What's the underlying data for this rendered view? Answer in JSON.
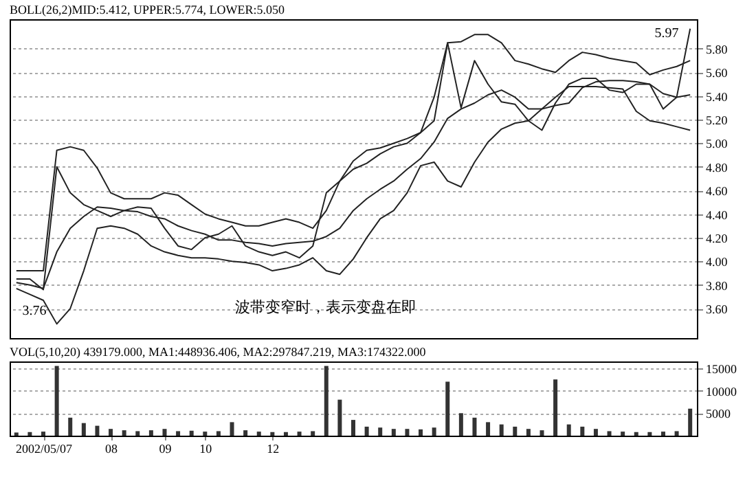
{
  "chart_data": [
    {
      "type": "line",
      "title": "BOLL(26,2)MID:5.412, UPPER:5.774, LOWER:5.050",
      "categories": [
        null,
        null,
        "2002/05/07",
        null,
        null,
        null,
        null,
        "08",
        null,
        null,
        null,
        "09",
        null,
        null,
        "10",
        null,
        null,
        null,
        null,
        "12",
        null,
        null,
        null,
        null,
        null,
        null,
        null,
        null,
        null,
        null,
        null,
        null,
        null,
        null,
        null,
        null,
        null,
        null,
        null,
        null,
        null,
        null,
        null,
        null,
        null,
        null,
        null,
        null,
        null,
        null,
        null
      ],
      "ylim": [
        3.35,
        6.05
      ],
      "yticks": [
        {
          "value": 3.6,
          "label": "3.60"
        },
        {
          "value": 3.8,
          "label": "3.80"
        },
        {
          "value": 4.0,
          "label": "4.00"
        },
        {
          "value": 4.2,
          "label": "4.20"
        },
        {
          "value": 4.4,
          "label": "4.40"
        },
        {
          "value": 4.6,
          "label": "4.60"
        },
        {
          "value": 4.8,
          "label": "4.80"
        },
        {
          "value": 5.0,
          "label": "5.00"
        },
        {
          "value": 5.2,
          "label": "5.20"
        },
        {
          "value": 5.4,
          "label": "5.40"
        },
        {
          "value": 5.6,
          "label": "5.60"
        },
        {
          "value": 5.8,
          "label": "5.80"
        }
      ],
      "grid": "y",
      "tick_labels": "y",
      "line_style": "solid",
      "series": [
        {
          "color": "#222222",
          "values": [
            3.85,
            3.85,
            3.76,
            4.8,
            4.58,
            4.48,
            4.43,
            4.38,
            4.43,
            4.46,
            4.45,
            4.28,
            4.13,
            4.1,
            4.2,
            4.23,
            4.3,
            4.13,
            4.08,
            4.05,
            4.08,
            4.03,
            4.13,
            4.58,
            4.68,
            4.78,
            4.83,
            4.91,
            4.97,
            5.0,
            5.09,
            5.39,
            5.85,
            5.3,
            5.7,
            5.5,
            5.35,
            5.33,
            5.19,
            5.11,
            5.34,
            5.5,
            5.55,
            5.55,
            5.45,
            5.43,
            5.5,
            5.5,
            5.29,
            5.39,
            5.97
          ]
        },
        {
          "color": "#222222",
          "values": [
            3.92,
            3.92,
            3.92,
            4.94,
            4.97,
            4.94,
            4.79,
            4.58,
            4.53,
            4.53,
            4.53,
            4.58,
            4.56,
            4.48,
            4.4,
            4.36,
            4.33,
            4.3,
            4.3,
            4.33,
            4.36,
            4.33,
            4.28,
            4.43,
            4.68,
            4.85,
            4.94,
            4.96,
            5.0,
            5.04,
            5.09,
            5.19,
            5.85,
            5.86,
            5.92,
            5.92,
            5.85,
            5.7,
            5.67,
            5.63,
            5.6,
            5.7,
            5.77,
            5.75,
            5.72,
            5.7,
            5.68,
            5.58,
            5.62,
            5.65,
            5.7
          ]
        },
        {
          "color": "#222222",
          "values": [
            3.82,
            3.8,
            3.77,
            4.08,
            4.28,
            4.38,
            4.46,
            4.45,
            4.43,
            4.42,
            4.38,
            4.36,
            4.3,
            4.26,
            4.23,
            4.18,
            4.18,
            4.16,
            4.15,
            4.13,
            4.15,
            4.16,
            4.17,
            4.21,
            4.28,
            4.43,
            4.53,
            4.61,
            4.68,
            4.78,
            4.87,
            5.01,
            5.21,
            5.29,
            5.34,
            5.41,
            5.45,
            5.39,
            5.29,
            5.29,
            5.32,
            5.34,
            5.47,
            5.52,
            5.53,
            5.53,
            5.52,
            5.5,
            5.42,
            5.39,
            5.41
          ]
        },
        {
          "color": "#222222",
          "values": [
            3.77,
            3.72,
            3.67,
            3.47,
            3.6,
            3.92,
            4.28,
            4.3,
            4.28,
            4.23,
            4.13,
            4.08,
            4.05,
            4.03,
            4.03,
            4.02,
            4.0,
            3.99,
            3.97,
            3.92,
            3.94,
            3.97,
            4.03,
            3.92,
            3.89,
            4.02,
            4.2,
            4.36,
            4.43,
            4.58,
            4.81,
            4.84,
            4.68,
            4.63,
            4.84,
            5.01,
            5.12,
            5.17,
            5.19,
            5.29,
            5.39,
            5.48,
            5.48,
            5.48,
            5.47,
            5.46,
            5.27,
            5.19,
            5.17,
            5.14,
            5.11
          ]
        }
      ],
      "annotations": [
        "5.97",
        "3.76",
        "波带变窄时，表示变盘在即"
      ]
    },
    {
      "type": "bar",
      "title": "VOL(5,10,20) 439179.000, MA1:448936.406, MA2:297847.219, MA3:174322.000",
      "categories": [
        null,
        null,
        "2002/05/07",
        null,
        null,
        null,
        null,
        "08",
        null,
        null,
        null,
        "09",
        null,
        null,
        "10",
        null,
        null,
        null,
        null,
        "12",
        null,
        null,
        null,
        null,
        null,
        null,
        null,
        null,
        null,
        null,
        null,
        null,
        null,
        null,
        null,
        null,
        null,
        null,
        null,
        null,
        null,
        null,
        null,
        null,
        null,
        null,
        null,
        null,
        null,
        null,
        null
      ],
      "ylim": [
        0,
        16500
      ],
      "yticks": [
        5000,
        10000,
        15000
      ],
      "grid": "y",
      "series": [
        {
          "color": "#333333",
          "values": [
            700,
            800,
            900,
            15500,
            4000,
            2800,
            2200,
            1500,
            1200,
            1000,
            1200,
            1500,
            1000,
            1100,
            900,
            1000,
            3000,
            1200,
            900,
            800,
            800,
            900,
            1000,
            15500,
            8000,
            3500,
            2000,
            1800,
            1500,
            1500,
            1400,
            1800,
            12000,
            5000,
            4000,
            3000,
            2500,
            2000,
            1500,
            1200,
            12500,
            2500,
            2000,
            1500,
            1000,
            900,
            800,
            800,
            900,
            1000,
            6000
          ]
        }
      ]
    }
  ]
}
